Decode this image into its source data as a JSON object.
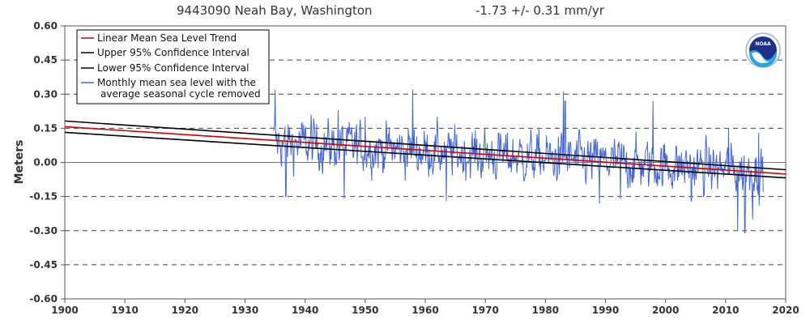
{
  "chart_data": {
    "type": "line",
    "title": "9443090 Neah Bay, Washington",
    "trend_label": "-1.73 +/-  0.31 mm/yr",
    "ylabel": "Meters",
    "xlim": [
      1900,
      2020
    ],
    "ylim": [
      -0.6,
      0.6
    ],
    "x_ticks": [
      1900,
      1910,
      1920,
      1930,
      1940,
      1950,
      1960,
      1970,
      1980,
      1990,
      2000,
      2010,
      2020
    ],
    "y_ticks": [
      "0.60",
      "0.45",
      "0.30",
      "0.15",
      "0.00",
      "-0.15",
      "-0.30",
      "-0.45",
      "-0.60"
    ],
    "y_tick_values": [
      0.6,
      0.45,
      0.3,
      0.15,
      0.0,
      -0.15,
      -0.3,
      -0.45,
      -0.6
    ],
    "grid": true,
    "legend_position": "top-left",
    "series": [
      {
        "name": "Linear Mean Sea Level Trend",
        "color": "#cc0000",
        "x": [
          1900,
          2020
        ],
        "y": [
          0.157,
          -0.051
        ]
      },
      {
        "name": "Upper 95% Confidence Interval",
        "color": "#000000",
        "x": [
          1900,
          2020
        ],
        "y": [
          0.182,
          -0.032
        ]
      },
      {
        "name": "Lower 95% Confidence Interval",
        "color": "#000000",
        "x": [
          1900,
          2020
        ],
        "y": [
          0.132,
          -0.068
        ]
      },
      {
        "name": "Monthly mean sea level with the",
        "name_line2": "average seasonal cycle removed",
        "color": "#4466dd",
        "x_range": [
          1934.75,
          2016.25
        ],
        "months": 979,
        "y_start": 0.09,
        "y_end": -0.04,
        "peaks": [
          [
            1935.0,
            0.32
          ],
          [
            1936.8,
            -0.15
          ],
          [
            1941.0,
            0.21
          ],
          [
            1945.5,
            0.23
          ],
          [
            1946.5,
            -0.16
          ],
          [
            1950.0,
            0.2
          ],
          [
            1957.9,
            0.32
          ],
          [
            1962.0,
            0.2
          ],
          [
            1963.5,
            -0.17
          ],
          [
            1983.0,
            0.31
          ],
          [
            1983.3,
            0.27
          ],
          [
            1989.0,
            -0.18
          ],
          [
            1997.9,
            0.27
          ],
          [
            1992.5,
            -0.16
          ],
          [
            2004.3,
            -0.17
          ],
          [
            2010.5,
            0.15
          ],
          [
            2012.0,
            -0.3
          ],
          [
            2013.2,
            -0.31
          ],
          [
            2014.5,
            -0.25
          ],
          [
            2015.5,
            0.13
          ]
        ]
      }
    ]
  },
  "logo": {
    "text": "NOAA"
  }
}
